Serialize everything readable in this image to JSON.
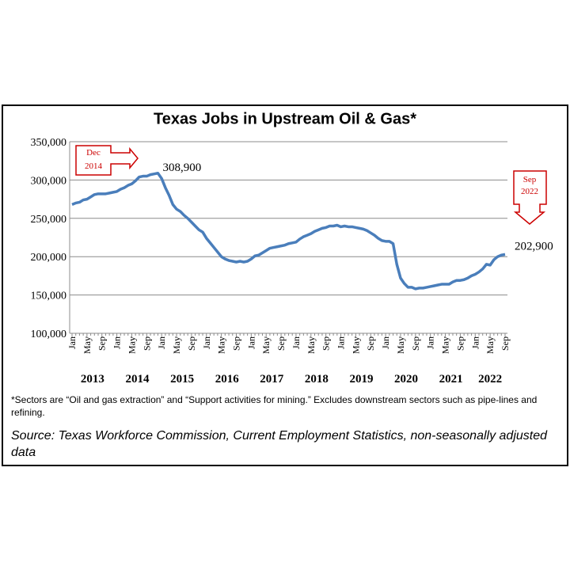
{
  "chart_data": {
    "type": "line",
    "title": "Texas Jobs in Upstream Oil & Gas*",
    "categories": [
      "Jan",
      null,
      null,
      null,
      "May",
      null,
      null,
      null,
      "Sep",
      null,
      null,
      null,
      "Jan",
      null,
      null,
      null,
      "May",
      null,
      null,
      null,
      "Sep",
      null,
      null,
      null,
      "Jan",
      null,
      null,
      null,
      "May",
      null,
      null,
      null,
      "Sep",
      null,
      null,
      null,
      "Jan",
      null,
      null,
      null,
      "May",
      null,
      null,
      null,
      "Sep",
      null,
      null,
      null,
      "Jan",
      null,
      null,
      null,
      "May",
      null,
      null,
      null,
      "Sep",
      null,
      null,
      null,
      "Jan",
      null,
      null,
      null,
      "May",
      null,
      null,
      null,
      "Sep",
      null,
      null,
      null,
      "Jan",
      null,
      null,
      null,
      "May",
      null,
      null,
      null,
      "Sep",
      null,
      null,
      null,
      "Jan",
      null,
      null,
      null,
      "May",
      null,
      null,
      null,
      "Sep",
      null,
      null,
      null,
      "Jan",
      null,
      null,
      null,
      "May",
      null,
      null,
      null,
      "Sep",
      null,
      null,
      null,
      "Jan",
      null,
      null,
      null,
      "May",
      null,
      null,
      null,
      "Sep"
    ],
    "years": [
      "2013",
      "2014",
      "2015",
      "2016",
      "2017",
      "2018",
      "2019",
      "2020",
      "2021",
      "2022"
    ],
    "values": [
      268000,
      270000,
      271000,
      274000,
      275000,
      278000,
      281000,
      282000,
      282000,
      282000,
      283000,
      284000,
      285000,
      288000,
      290000,
      293000,
      295000,
      299000,
      304000,
      305000,
      305000,
      307000,
      308000,
      308900,
      302000,
      290000,
      280000,
      268000,
      262000,
      259000,
      254000,
      250000,
      245000,
      240000,
      235000,
      232000,
      224000,
      218000,
      212000,
      206000,
      200000,
      197000,
      195000,
      194000,
      193000,
      194000,
      193000,
      194000,
      197000,
      201000,
      202000,
      205000,
      208000,
      211000,
      212000,
      213000,
      214000,
      215000,
      217000,
      218000,
      219000,
      223000,
      226000,
      228000,
      230000,
      233000,
      235000,
      237000,
      238000,
      240000,
      240000,
      241000,
      239000,
      240000,
      239000,
      239000,
      238000,
      237000,
      236000,
      234000,
      231000,
      228000,
      224000,
      221000,
      220000,
      220000,
      217000,
      190000,
      172000,
      165000,
      160000,
      160000,
      158000,
      159000,
      159000,
      160000,
      161000,
      162000,
      163000,
      164000,
      164000,
      164000,
      167000,
      169000,
      169000,
      170000,
      172000,
      175000,
      177000,
      180000,
      184000,
      190000,
      189000,
      196000,
      200000,
      202000,
      202900
    ],
    "value_labels": [
      null,
      null,
      null,
      null,
      null,
      null,
      null,
      null,
      null,
      null,
      null,
      null,
      null,
      null,
      null,
      null,
      null,
      null,
      null,
      null,
      null,
      null,
      null,
      "308,900",
      null,
      null,
      null,
      null,
      null,
      null,
      null,
      null,
      null,
      null,
      null,
      null,
      null,
      null,
      null,
      null,
      null,
      null,
      null,
      null,
      null,
      null,
      null,
      null,
      null,
      null,
      null,
      null,
      null,
      null,
      null,
      null,
      null,
      null,
      null,
      null,
      null,
      null,
      null,
      null,
      null,
      null,
      null,
      null,
      null,
      null,
      null,
      null,
      null,
      null,
      null,
      null,
      null,
      null,
      null,
      null,
      null,
      null,
      null,
      null,
      null,
      null,
      null,
      null,
      null,
      null,
      null,
      null,
      null,
      null,
      null,
      null,
      null,
      null,
      null,
      null,
      null,
      null,
      null,
      null,
      null,
      null,
      null,
      null,
      null,
      null,
      null,
      null,
      null,
      null,
      null,
      null,
      "202,900"
    ],
    "color": "#4a7ebb",
    "ylim": [
      100000,
      350000
    ],
    "yticks": [
      {
        "value": 100000,
        "label": "100,000"
      },
      {
        "value": 150000,
        "label": "150,000"
      },
      {
        "value": 200000,
        "label": "200,000"
      },
      {
        "value": 250000,
        "label": "250,000"
      },
      {
        "value": 300000,
        "label": "300,000"
      },
      {
        "value": 350000,
        "label": "350,000"
      }
    ],
    "grid": true,
    "callouts": [
      {
        "lines": [
          "Dec",
          "2014"
        ]
      },
      {
        "lines": [
          "Sep",
          "2022"
        ]
      }
    ],
    "footnote": "*Sectors are “Oil and gas extraction” and “Support activities for mining.” Excludes downstream sectors such as pipe-lines and refining.",
    "source": "Source: Texas Workforce Commission, Current Employment Statistics, non-seasonally adjusted data"
  }
}
